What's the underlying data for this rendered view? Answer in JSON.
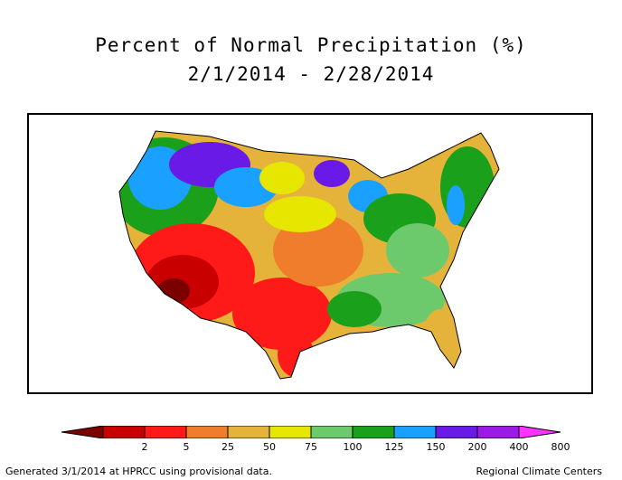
{
  "title_line1": "Percent of Normal Precipitation (%)",
  "title_line2": "2/1/2014 - 2/28/2014",
  "legend": {
    "labels": [
      "2",
      "5",
      "25",
      "50",
      "75",
      "100",
      "125",
      "150",
      "200",
      "400",
      "800"
    ],
    "colors": [
      "#7b0000",
      "#c80000",
      "#ff1a1a",
      "#ef7d2c",
      "#e6b33a",
      "#e6e600",
      "#6cc96c",
      "#1aa01a",
      "#1aa0ff",
      "#6a1ae6",
      "#9c1ae6",
      "#ff33ff"
    ]
  },
  "footer_left": "Generated 3/1/2014 at HPRCC using provisional data.",
  "footer_right": "Regional Climate Centers"
}
